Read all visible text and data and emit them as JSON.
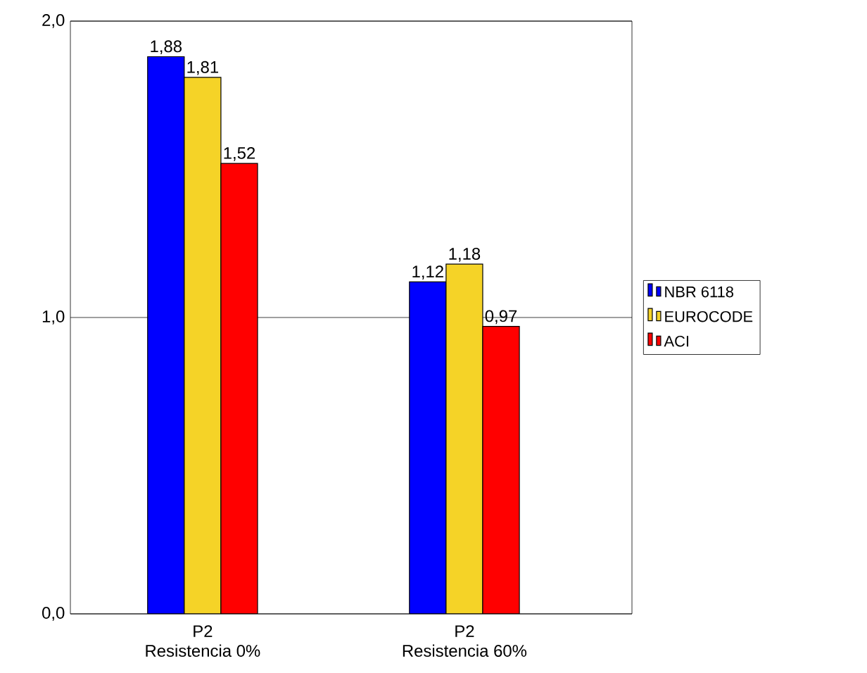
{
  "chart_data": {
    "type": "bar",
    "categories": [
      "P2\nResistencia 0%",
      "P2\nResistencia 60%"
    ],
    "series": [
      {
        "name": "NBR 6118",
        "color": "#0000ff",
        "values": [
          1.88,
          1.12
        ],
        "value_labels": [
          "1,88",
          "1,12"
        ]
      },
      {
        "name": "EUROCODE",
        "color": "#f5d327",
        "values": [
          1.81,
          1.18
        ],
        "value_labels": [
          "1,81",
          "1,18"
        ]
      },
      {
        "name": "ACI",
        "color": "#ff0000",
        "values": [
          1.52,
          0.97
        ],
        "value_labels": [
          "1,52",
          "0,97"
        ]
      }
    ],
    "ylim": [
      0,
      2
    ],
    "yticks": [
      {
        "value": 0,
        "label": "0,0"
      },
      {
        "value": 1,
        "label": "1,0"
      },
      {
        "value": 2,
        "label": "2,0"
      }
    ],
    "grid": "y",
    "legend": "right"
  }
}
